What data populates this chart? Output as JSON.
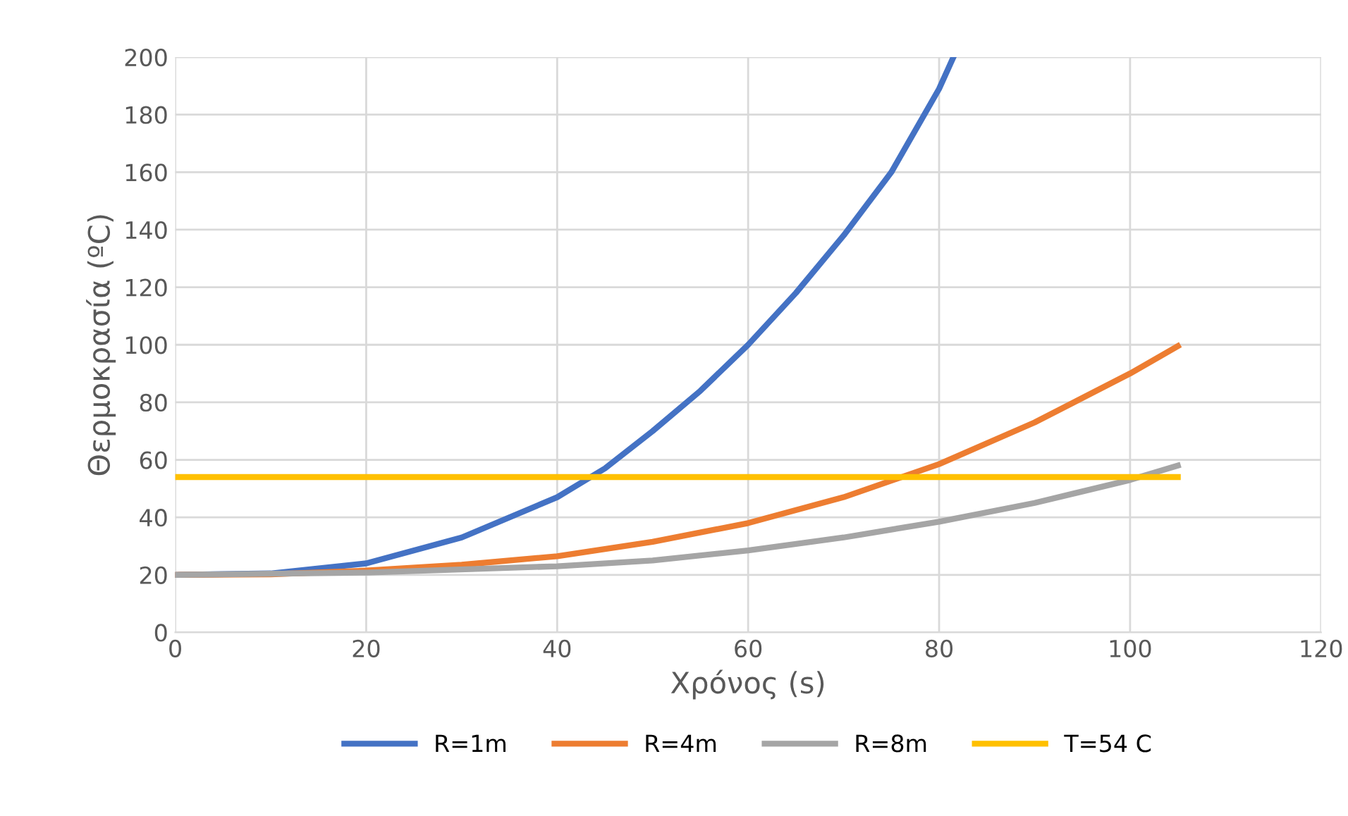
{
  "chart_data": {
    "type": "line",
    "xlabel": "Χρόνος (s)",
    "ylabel": "Θερμοκρασία (ºC)",
    "xlim": [
      0,
      120
    ],
    "xticks": [
      0,
      20,
      40,
      60,
      80,
      100,
      120
    ],
    "ylim": [
      0,
      200
    ],
    "yticks": [
      0,
      20,
      40,
      60,
      80,
      100,
      120,
      140,
      160,
      180,
      200
    ],
    "grid": true,
    "legend": "bottom",
    "marker": "none",
    "line_style": "solid",
    "series": [
      {
        "name": "R=1m",
        "color": "#4472c4",
        "x": [
          0,
          10,
          20,
          30,
          40,
          45,
          50,
          55,
          60,
          65,
          70,
          75,
          80,
          81.5
        ],
        "values": [
          20,
          20.5,
          24,
          33,
          47,
          57,
          70,
          84,
          100,
          118,
          138,
          160,
          189,
          200
        ]
      },
      {
        "name": "R=4m",
        "color": "#ed7d31",
        "x": [
          0,
          10,
          20,
          30,
          40,
          50,
          60,
          70,
          80,
          90,
          100,
          105
        ],
        "values": [
          20,
          20.2,
          21.5,
          23.5,
          26.5,
          31.5,
          38,
          47,
          58.5,
          73,
          90,
          99.5
        ]
      },
      {
        "name": "R=8m",
        "color": "#a5a5a5",
        "x": [
          0,
          20,
          40,
          50,
          60,
          70,
          80,
          90,
          100,
          105
        ],
        "values": [
          20,
          20.8,
          23,
          25,
          28.5,
          33,
          38.5,
          45,
          53,
          58
        ]
      },
      {
        "name": "T=54 C",
        "color": "#ffc000",
        "x": [
          0,
          105
        ],
        "values": [
          54,
          54
        ]
      }
    ]
  }
}
